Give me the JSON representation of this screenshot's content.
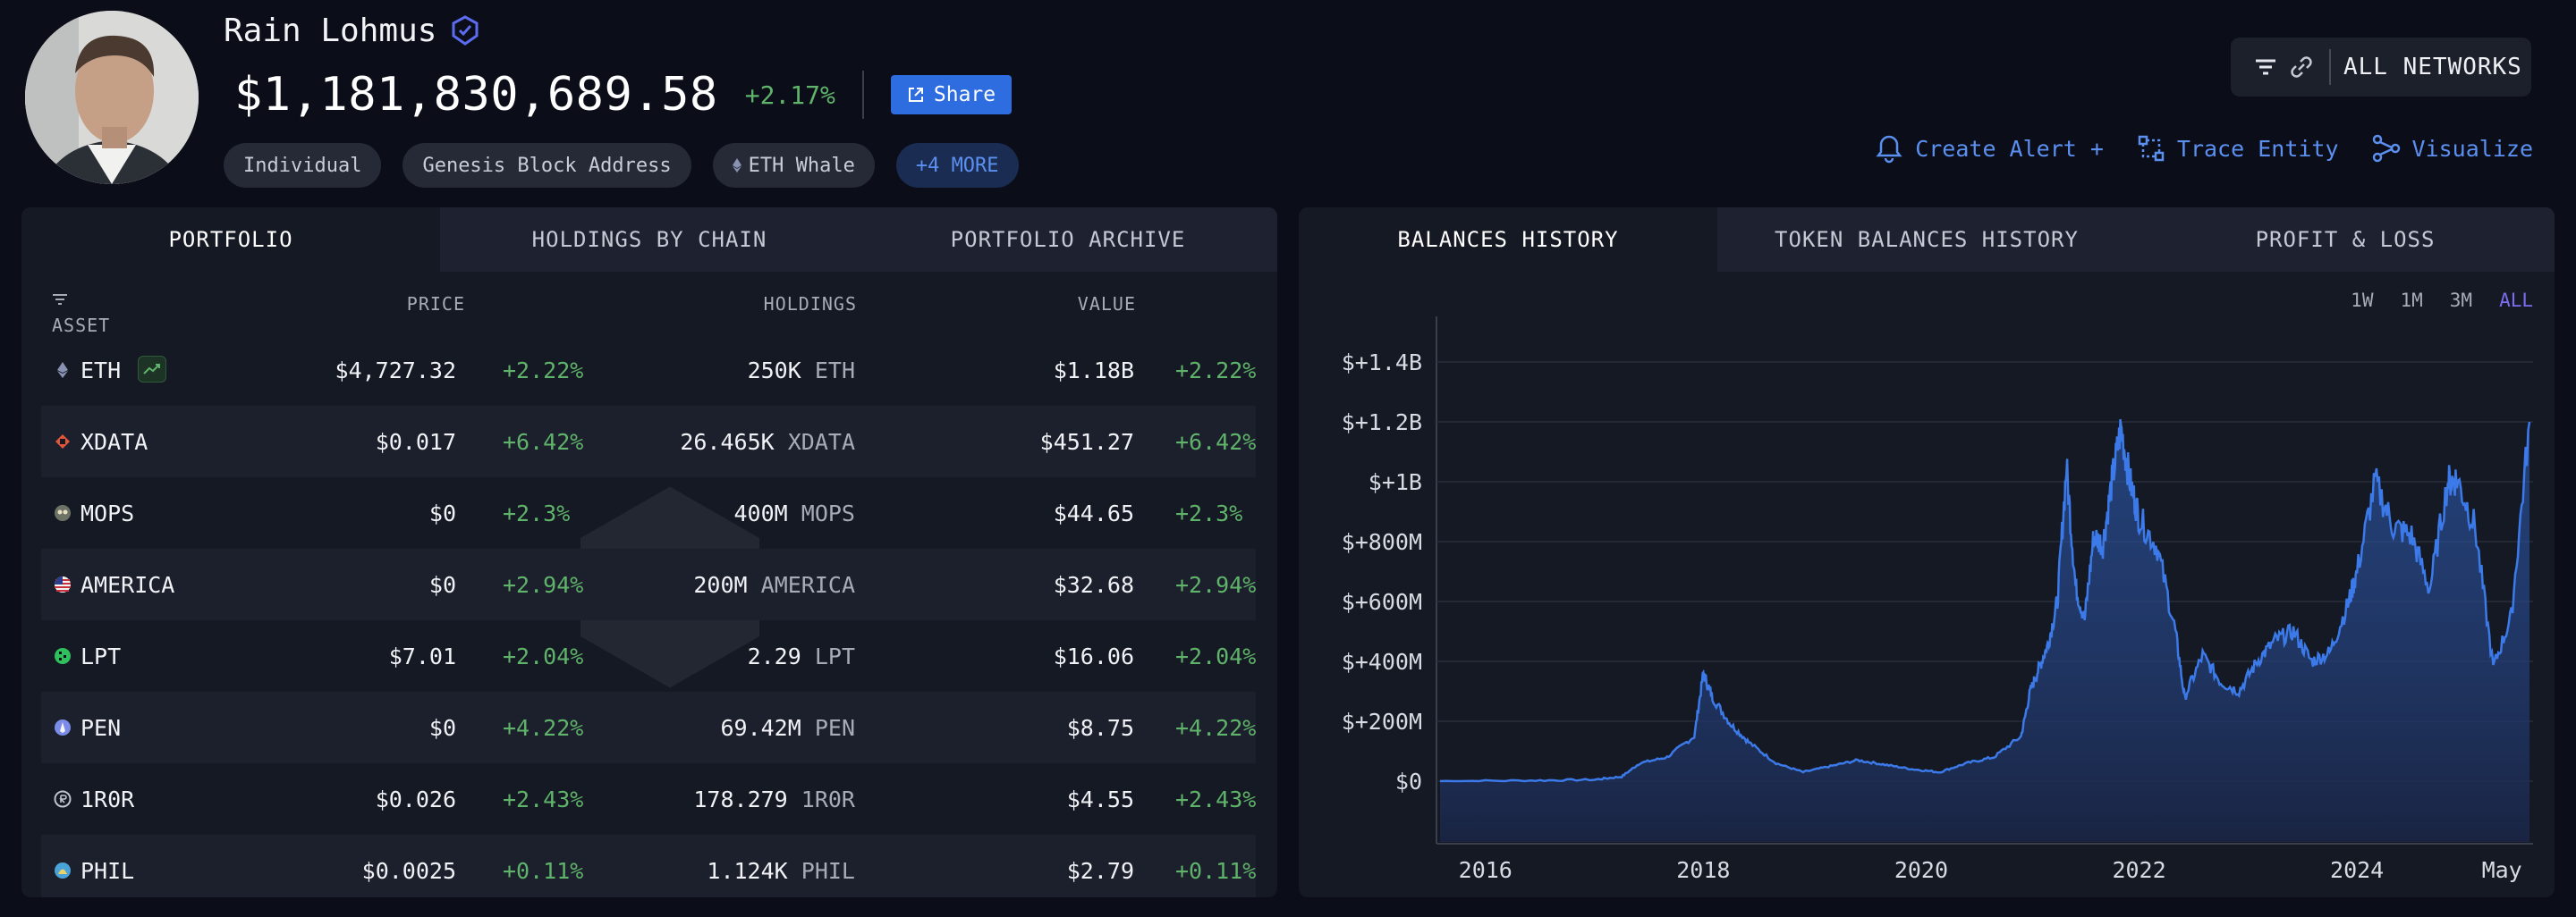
{
  "entity": {
    "name": "Rain Lohmus",
    "balance": "$1,181,830,689.58",
    "change": "+2.17%",
    "share_label": "Share",
    "tags": [
      "Individual",
      "Genesis Block Address",
      "ETH Whale"
    ],
    "more_tag": "+4 MORE"
  },
  "header": {
    "networks_label": "ALL NETWORKS",
    "actions": [
      "Create Alert +",
      "Trace Entity",
      "Visualize"
    ]
  },
  "left_tabs": [
    "PORTFOLIO",
    "HOLDINGS BY CHAIN",
    "PORTFOLIO ARCHIVE"
  ],
  "right_tabs": [
    "BALANCES HISTORY",
    "TOKEN BALANCES HISTORY",
    "PROFIT & LOSS"
  ],
  "table": {
    "headers": {
      "asset": "ASSET",
      "price": "PRICE",
      "holdings": "HOLDINGS",
      "value": "VALUE"
    },
    "rows": [
      {
        "symbol": "ETH",
        "price": "$4,727.32",
        "price_change": "+2.22%",
        "holdings": "250K",
        "unit": "ETH",
        "value": "$1.18B",
        "value_change": "+2.22%",
        "icon": "eth-icon",
        "color": "#8a92b2"
      },
      {
        "symbol": "XDATA",
        "price": "$0.017",
        "price_change": "+6.42%",
        "holdings": "26.465K",
        "unit": "XDATA",
        "value": "$451.27",
        "value_change": "+6.42%",
        "icon": "xdata-icon",
        "color": "#e0563a"
      },
      {
        "symbol": "MOPS",
        "price": "$0",
        "price_change": "+2.3%",
        "holdings": "400M",
        "unit": "MOPS",
        "value": "$44.65",
        "value_change": "+2.3%",
        "icon": "mops-icon",
        "color": "#8a8f7a"
      },
      {
        "symbol": "AMERICA",
        "price": "$0",
        "price_change": "+2.94%",
        "holdings": "200M",
        "unit": "AMERICA",
        "value": "$32.68",
        "value_change": "+2.94%",
        "icon": "us-flag-icon",
        "color": "#c8323c"
      },
      {
        "symbol": "LPT",
        "price": "$7.01",
        "price_change": "+2.04%",
        "holdings": "2.29",
        "unit": "LPT",
        "value": "$16.06",
        "value_change": "+2.04%",
        "icon": "lpt-icon",
        "color": "#2fbf5c"
      },
      {
        "symbol": "PEN",
        "price": "$0",
        "price_change": "+4.22%",
        "holdings": "69.42M",
        "unit": "PEN",
        "value": "$8.75",
        "value_change": "+4.22%",
        "icon": "pen-icon",
        "color": "#7b8ce8"
      },
      {
        "symbol": "1R0R",
        "price": "$0.026",
        "price_change": "+2.43%",
        "holdings": "178.279",
        "unit": "1R0R",
        "value": "$4.55",
        "value_change": "+2.43%",
        "icon": "1r0r-icon",
        "color": "#bfc3cc"
      },
      {
        "symbol": "PHIL",
        "price": "$0.0025",
        "price_change": "+0.11%",
        "holdings": "1.124K",
        "unit": "PHIL",
        "value": "$2.79",
        "value_change": "+0.11%",
        "icon": "phil-icon",
        "color": "#4aa3d8"
      }
    ]
  },
  "chart_ranges": [
    "1W",
    "1M",
    "3M",
    "ALL"
  ],
  "active_range": "ALL",
  "chart_data": {
    "type": "area",
    "y_ticks": [
      "$0",
      "$+200M",
      "$+400M",
      "$+600M",
      "$+800M",
      "$+1B",
      "$+1.2B",
      "$+1.4B"
    ],
    "x_ticks": [
      "2016",
      "2018",
      "2020",
      "2022",
      "2024",
      "May"
    ],
    "ylim": [
      0,
      1400
    ],
    "y_unit": "M",
    "line_color": "#3b7ae8",
    "x": [
      "2015-08",
      "2016-06",
      "2017-01",
      "2017-04",
      "2017-06",
      "2017-09",
      "2017-12",
      "2018-01",
      "2018-02",
      "2018-04",
      "2018-06",
      "2018-09",
      "2018-12",
      "2019-03",
      "2019-06",
      "2019-09",
      "2019-12",
      "2020-03",
      "2020-06",
      "2020-09",
      "2020-12",
      "2021-01",
      "2021-02",
      "2021-03",
      "2021-04",
      "2021-05",
      "2021-06",
      "2021-07",
      "2021-08",
      "2021-09",
      "2021-10",
      "2021-11",
      "2021-12",
      "2022-01",
      "2022-03",
      "2022-05",
      "2022-06",
      "2022-08",
      "2022-10",
      "2022-12",
      "2023-02",
      "2023-04",
      "2023-06",
      "2023-08",
      "2023-10",
      "2023-12",
      "2024-01",
      "2024-03",
      "2024-05",
      "2024-07",
      "2024-09",
      "2024-11",
      "2024-12",
      "2025-02",
      "2025-04",
      "2025-06",
      "2025-08"
    ],
    "values": [
      0,
      2,
      5,
      15,
      60,
      80,
      150,
      360,
      280,
      190,
      130,
      60,
      30,
      50,
      70,
      55,
      40,
      30,
      60,
      80,
      150,
      300,
      380,
      460,
      600,
      1050,
      650,
      540,
      820,
      790,
      1000,
      1180,
      1000,
      880,
      780,
      500,
      280,
      420,
      330,
      300,
      400,
      470,
      500,
      400,
      430,
      590,
      700,
      1000,
      850,
      820,
      640,
      1000,
      1010,
      850,
      380,
      550,
      1200
    ]
  }
}
